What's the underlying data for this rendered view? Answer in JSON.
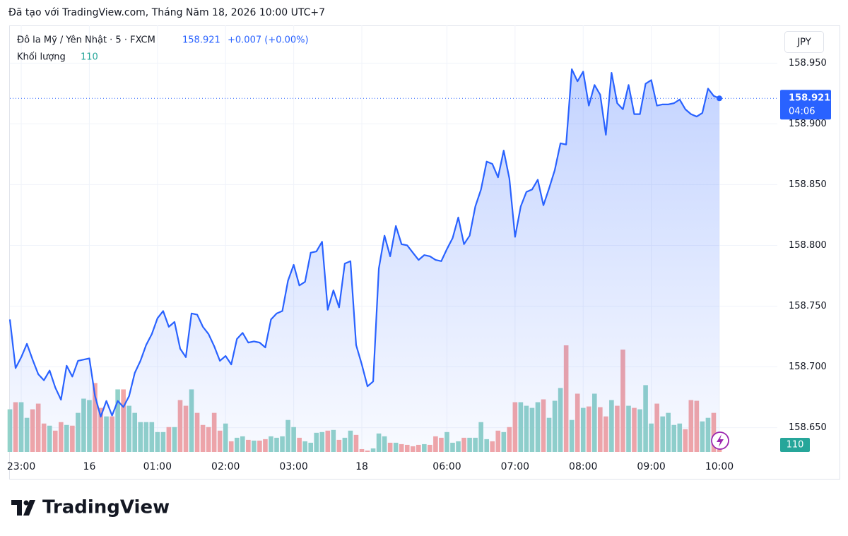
{
  "header": "Đã tạo với TradingView.com, Tháng Năm 18, 2026 10:00 UTC+7",
  "brand": "TradingView",
  "chart_data": {
    "type": "line",
    "symbol": "Đô la Mỹ / Yên Nhật · 5 · FXCM",
    "change_label": "+0.007 (+0.00%)",
    "volume_label": "Khối lượng",
    "countdown": "04:06",
    "currency": "JPY",
    "color": "#2962ff",
    "volume_colors": {
      "up": "#92d2c9",
      "down": "#f4a6a6"
    },
    "grid": true,
    "categories": [
      null,
      null,
      "23:00",
      null,
      null,
      null,
      null,
      null,
      null,
      null,
      null,
      null,
      null,
      null,
      "16",
      null,
      null,
      null,
      null,
      null,
      null,
      null,
      null,
      null,
      null,
      null,
      "01:00",
      null,
      null,
      null,
      null,
      null,
      null,
      null,
      null,
      null,
      null,
      null,
      "02:00",
      null,
      null,
      null,
      null,
      null,
      null,
      null,
      null,
      null,
      null,
      null,
      "03:00",
      null,
      null,
      null,
      null,
      null,
      null,
      null,
      null,
      null,
      null,
      null,
      "18",
      null,
      null,
      null,
      null,
      null,
      null,
      null,
      null,
      null,
      null,
      null,
      null,
      null,
      null,
      "06:00",
      null,
      null,
      null,
      null,
      null,
      null,
      null,
      null,
      null,
      null,
      null,
      "07:00",
      null,
      null,
      null,
      null,
      null,
      null,
      null,
      null,
      null,
      null,
      null,
      "08:00",
      null,
      null,
      null,
      null,
      null,
      null,
      null,
      null,
      null,
      null,
      null,
      "09:00",
      null,
      null,
      null,
      null,
      null,
      null,
      null,
      null,
      null,
      null,
      null,
      "10:00"
    ],
    "values": [
      158.739,
      158.699,
      158.708,
      158.719,
      158.706,
      158.694,
      158.689,
      158.697,
      158.683,
      158.673,
      158.701,
      158.692,
      158.705,
      158.706,
      158.707,
      158.676,
      158.659,
      158.672,
      158.66,
      158.672,
      158.667,
      158.676,
      158.695,
      158.705,
      158.718,
      158.727,
      158.74,
      158.746,
      158.733,
      158.737,
      158.715,
      158.708,
      158.744,
      158.743,
      158.733,
      158.727,
      158.717,
      158.705,
      158.709,
      158.702,
      158.723,
      158.728,
      158.72,
      158.721,
      158.72,
      158.716,
      158.739,
      158.744,
      158.746,
      158.771,
      158.784,
      158.767,
      158.77,
      158.794,
      158.795,
      158.803,
      158.747,
      158.763,
      158.749,
      158.785,
      158.787,
      158.718,
      158.702,
      158.684,
      158.688,
      158.781,
      158.808,
      158.791,
      158.816,
      158.801,
      158.8,
      158.794,
      158.788,
      158.792,
      158.791,
      158.788,
      158.787,
      158.797,
      158.806,
      158.823,
      158.801,
      158.808,
      158.832,
      158.846,
      158.869,
      158.867,
      158.856,
      158.878,
      158.855,
      158.807,
      158.832,
      158.844,
      158.846,
      158.854,
      158.833,
      158.847,
      158.862,
      158.884,
      158.883,
      158.945,
      158.935,
      158.943,
      158.915,
      158.932,
      158.924,
      158.891,
      158.942,
      158.917,
      158.912,
      158.932,
      158.908,
      158.908,
      158.933,
      158.936,
      158.915,
      158.916,
      158.916,
      158.917,
      158.92,
      158.912,
      158.908,
      158.906,
      158.909,
      158.929,
      158.923,
      158.921
    ],
    "volume": [
      660,
      770,
      770,
      528,
      660,
      748,
      440,
      407,
      330,
      462,
      418,
      407,
      605,
      825,
      803,
      1067,
      682,
      550,
      550,
      968,
      968,
      715,
      605,
      462,
      462,
      462,
      308,
      308,
      385,
      385,
      803,
      715,
      968,
      605,
      418,
      385,
      605,
      330,
      440,
      165,
      220,
      242,
      187,
      176,
      176,
      198,
      242,
      220,
      242,
      495,
      385,
      220,
      165,
      143,
      297,
      308,
      330,
      341,
      187,
      220,
      330,
      264,
      44,
      22,
      55,
      286,
      242,
      143,
      143,
      121,
      110,
      88,
      110,
      121,
      110,
      242,
      220,
      308,
      143,
      165,
      220,
      220,
      220,
      462,
      198,
      165,
      330,
      308,
      385,
      770,
      770,
      715,
      682,
      770,
      814,
      528,
      792,
      990,
      1650,
      495,
      902,
      682,
      704,
      902,
      693,
      550,
      803,
      715,
      1584,
      715,
      682,
      660,
      1034,
      440,
      748,
      550,
      605,
      418,
      440,
      352,
      803,
      792,
      473,
      528,
      605,
      110
    ],
    "ylim": [
      158.63,
      158.981
    ],
    "yticks": [
      {
        "value": 158.65,
        "label": "158.650"
      },
      {
        "value": 158.7,
        "label": "158.700"
      },
      {
        "value": 158.75,
        "label": "158.750"
      },
      {
        "value": 158.8,
        "label": "158.800"
      },
      {
        "value": 158.85,
        "label": "158.850"
      },
      {
        "value": 158.9,
        "label": "158.900"
      },
      {
        "value": 158.95,
        "label": "158.950"
      }
    ]
  }
}
